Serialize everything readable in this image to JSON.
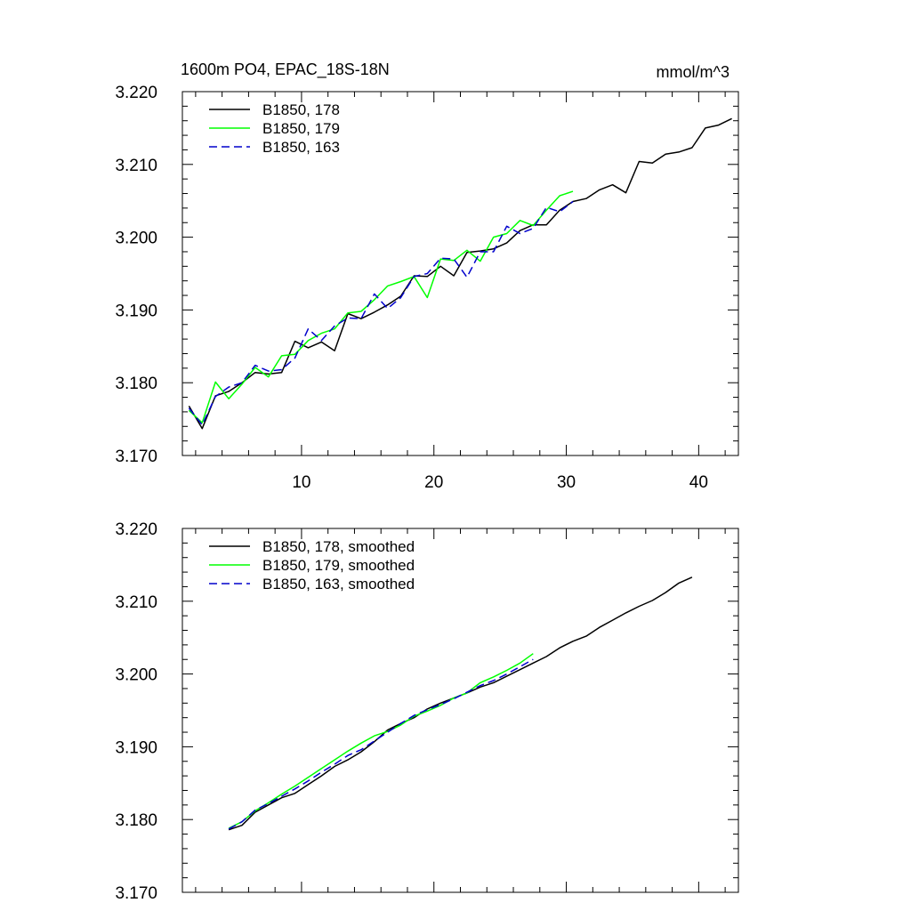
{
  "title_left": "1600m PO4, EPAC_18S-18N",
  "units": "mmol/m^3",
  "colors": {
    "s178": "#000000",
    "s179": "#00ff00",
    "s163": "#0000cc"
  },
  "chart_data": [
    {
      "type": "line",
      "xlim": [
        1,
        43
      ],
      "ylim": [
        3.17,
        3.22
      ],
      "x_ticks": [
        10,
        20,
        30,
        40
      ],
      "y_ticks": [
        "3.170",
        "3.180",
        "3.190",
        "3.200",
        "3.210",
        "3.220"
      ],
      "legend_position": "top-left",
      "series": [
        {
          "name": "B1850, 178",
          "style": "solid",
          "color": "#000000",
          "x": [
            1.5,
            2.5,
            3.5,
            4.5,
            5.5,
            6.5,
            7.5,
            8.5,
            9.5,
            10.5,
            11.5,
            12.5,
            13.5,
            14.5,
            15.5,
            16.5,
            17.5,
            18.5,
            19.5,
            20.5,
            21.5,
            22.5,
            23.5,
            24.5,
            25.5,
            26.5,
            27.5,
            28.5,
            29.5,
            30.5,
            31.5,
            32.5,
            33.5,
            34.5,
            35.5,
            36.5,
            37.5,
            38.5,
            39.5,
            40.5,
            41.5,
            42.5
          ],
          "y": [
            3.1768,
            3.1737,
            3.1782,
            3.1788,
            3.18,
            3.1814,
            3.1812,
            3.1814,
            3.1857,
            3.1848,
            3.1856,
            3.1844,
            3.1895,
            3.1888,
            3.1897,
            3.1907,
            3.1919,
            3.1947,
            3.1946,
            3.196,
            3.1947,
            3.1979,
            3.1981,
            3.1984,
            3.1992,
            3.2009,
            3.2017,
            3.2017,
            3.2037,
            3.2049,
            3.2053,
            3.2065,
            3.2072,
            3.2061,
            3.2104,
            3.2102,
            3.2114,
            3.2117,
            3.2123,
            3.215,
            3.2154,
            3.2163
          ]
        },
        {
          "name": "B1850, 179",
          "style": "solid",
          "color": "#00ff00",
          "x": [
            1.5,
            2.5,
            3.5,
            4.5,
            5.5,
            6.5,
            7.5,
            8.5,
            9.5,
            10.5,
            11.5,
            12.5,
            13.5,
            14.5,
            15.5,
            16.5,
            17.5,
            18.5,
            19.5,
            20.5,
            21.5,
            22.5,
            23.5,
            24.5,
            25.5,
            26.5,
            27.5,
            28.5,
            29.5,
            30.5
          ],
          "y": [
            3.1762,
            3.1745,
            3.1801,
            3.1778,
            3.1798,
            3.1821,
            3.1808,
            3.1837,
            3.1839,
            3.1858,
            3.1868,
            3.1874,
            3.1896,
            3.1898,
            3.1914,
            3.1933,
            3.1939,
            3.1946,
            3.1917,
            3.197,
            3.1968,
            3.1982,
            3.1967,
            3.2,
            3.2005,
            3.2023,
            3.2016,
            3.2037,
            3.2057,
            3.2063
          ]
        },
        {
          "name": "B1850, 163",
          "style": "dashed",
          "color": "#0000cc",
          "x": [
            1.5,
            2.5,
            3.5,
            4.5,
            5.5,
            6.5,
            7.5,
            8.5,
            9.5,
            10.5,
            11.5,
            12.5,
            13.5,
            14.5,
            15.5,
            16.5,
            17.5,
            18.5,
            19.5,
            20.5,
            21.5,
            22.5,
            23.5,
            24.5,
            25.5,
            26.5,
            27.5,
            28.5,
            29.5,
            30.5
          ],
          "y": [
            3.1765,
            3.1742,
            3.1781,
            3.1794,
            3.18,
            3.1824,
            3.1816,
            3.1818,
            3.1834,
            3.1874,
            3.1858,
            3.1878,
            3.1889,
            3.1888,
            3.1922,
            3.1902,
            3.1917,
            3.1946,
            3.195,
            3.1971,
            3.197,
            3.1945,
            3.198,
            3.198,
            3.2015,
            3.2005,
            3.2012,
            3.2041,
            3.2035,
            3.2049
          ]
        }
      ]
    },
    {
      "type": "line",
      "xlim": [
        1,
        43
      ],
      "ylim": [
        3.17,
        3.22
      ],
      "x_ticks": [
        10,
        20,
        30,
        40
      ],
      "y_ticks": [
        "3.170",
        "3.180",
        "3.190",
        "3.200",
        "3.210",
        "3.220"
      ],
      "legend_position": "top-left",
      "series": [
        {
          "name": "B1850, 178, smoothed",
          "style": "solid",
          "color": "#000000",
          "x": [
            4.5,
            5.5,
            6.5,
            7.5,
            8.5,
            9.5,
            10.5,
            11.5,
            12.5,
            13.5,
            14.5,
            15.5,
            16.5,
            17.5,
            18.5,
            19.5,
            20.5,
            21.5,
            22.5,
            23.5,
            24.5,
            25.5,
            26.5,
            27.5,
            28.5,
            29.5,
            30.5,
            31.5,
            32.5,
            33.5,
            34.5,
            35.5,
            36.5,
            37.5,
            38.5,
            39.5
          ],
          "y": [
            3.1786,
            3.1792,
            3.181,
            3.182,
            3.183,
            3.1836,
            3.1848,
            3.186,
            3.1873,
            3.1882,
            3.1893,
            3.1907,
            3.1923,
            3.1932,
            3.194,
            3.1952,
            3.196,
            3.1967,
            3.1974,
            3.1982,
            3.1988,
            3.1997,
            3.2006,
            3.2015,
            3.2024,
            3.2036,
            3.2045,
            3.2052,
            3.2064,
            3.2074,
            3.2084,
            3.2093,
            3.2101,
            3.2112,
            3.2125,
            3.2133
          ]
        },
        {
          "name": "B1850, 179, smoothed",
          "style": "solid",
          "color": "#00ff00",
          "x": [
            4.5,
            5.5,
            6.5,
            7.5,
            8.5,
            9.5,
            10.5,
            11.5,
            12.5,
            13.5,
            14.5,
            15.5,
            16.5,
            17.5,
            18.5,
            19.5,
            20.5,
            21.5,
            22.5,
            23.5,
            24.5,
            25.5,
            26.5,
            27.5
          ],
          "y": [
            3.1788,
            3.1797,
            3.1812,
            3.1823,
            3.1835,
            3.1846,
            3.1858,
            3.187,
            3.1882,
            3.1894,
            3.1905,
            3.1915,
            3.1921,
            3.193,
            3.1942,
            3.1949,
            3.1957,
            3.1967,
            3.1974,
            3.1988,
            3.1996,
            3.2005,
            3.2015,
            3.2028
          ]
        },
        {
          "name": "B1850, 163, smoothed",
          "style": "dashed",
          "color": "#0000cc",
          "x": [
            4.5,
            5.5,
            6.5,
            7.5,
            8.5,
            9.5,
            10.5,
            11.5,
            12.5,
            13.5,
            14.5,
            15.5,
            16.5,
            17.5,
            18.5,
            19.5,
            20.5,
            21.5,
            22.5,
            23.5,
            24.5,
            25.5,
            26.5,
            27.5
          ],
          "y": [
            3.1787,
            3.1797,
            3.1813,
            3.1822,
            3.1832,
            3.1842,
            3.1853,
            3.1865,
            3.1876,
            3.1888,
            3.1896,
            3.1908,
            3.192,
            3.1932,
            3.1943,
            3.1951,
            3.1958,
            3.1966,
            3.1975,
            3.1984,
            3.1991,
            3.2,
            3.201,
            3.202
          ]
        }
      ]
    }
  ]
}
